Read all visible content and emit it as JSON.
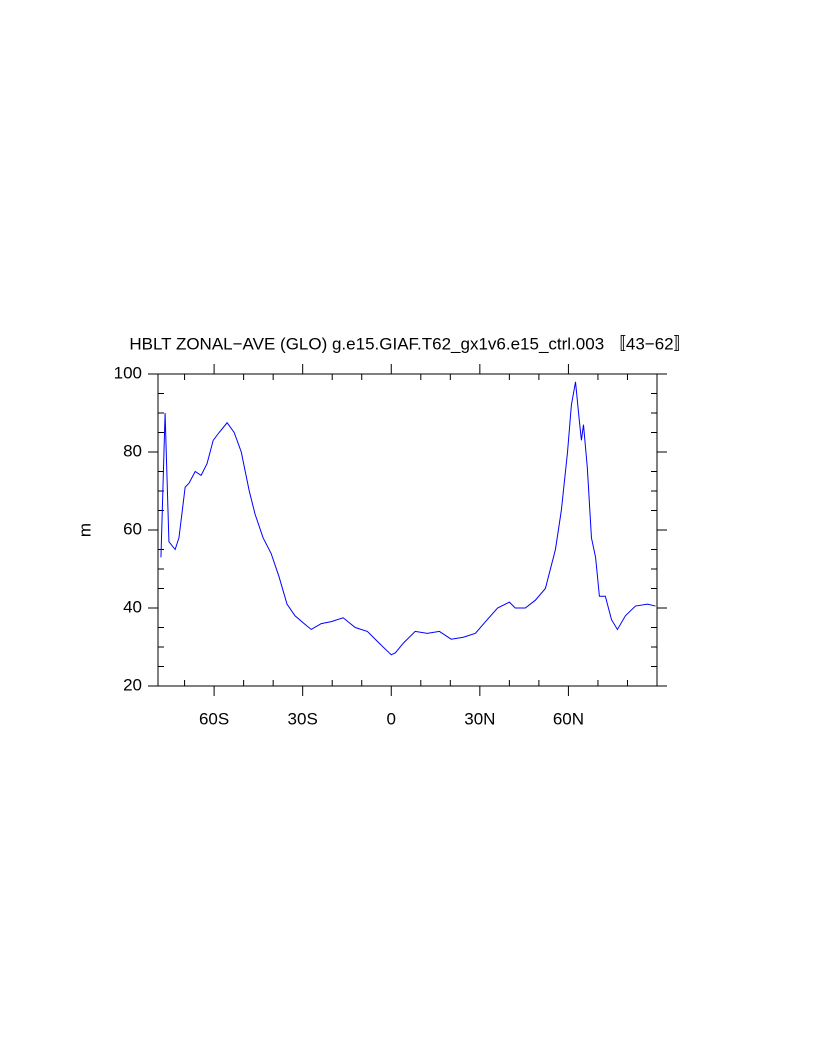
{
  "chart_data": {
    "type": "line",
    "title": "HBLT ZONAL−AVE (GLO) g.e15.GIAF.T62_gx1v6.e15_ctrl.003 〚43−62〛",
    "y_label": "m",
    "xlim": [
      -79,
      90
    ],
    "ylim": [
      20,
      100
    ],
    "xticks": [
      {
        "value": -60,
        "label": "60S"
      },
      {
        "value": -30,
        "label": "30S"
      },
      0,
      {
        "value": 30,
        "label": "30N"
      },
      {
        "value": 60,
        "label": "60N"
      }
    ],
    "xminorticks": [
      -70,
      -50,
      -40,
      -20,
      -10,
      10,
      20,
      40,
      50,
      70,
      80
    ],
    "yticks": [
      20,
      40,
      60,
      80,
      100
    ],
    "yminorticks": [
      25,
      30,
      35,
      45,
      50,
      55,
      65,
      70,
      75,
      85,
      90,
      95
    ],
    "x": [
      -78,
      -76.6,
      -75.3,
      -73.2,
      -71.9,
      -69.8,
      -68.5,
      -66.4,
      -64.4,
      -62.4,
      -60.3,
      -58.3,
      -55.6,
      -53.2,
      -50.8,
      -48.1,
      -46.1,
      -43.4,
      -40.7,
      -38,
      -35.3,
      -32.6,
      -29.5,
      -27.1,
      -23.7,
      -20.3,
      -16.3,
      -12.2,
      -8.1,
      -4.1,
      0,
      1.4,
      4.1,
      8.1,
      12.2,
      16.3,
      20.3,
      24.4,
      28.5,
      31.9,
      36,
      40,
      42,
      45.4,
      48.8,
      52.2,
      55.6,
      57.6,
      59.7,
      61,
      62.4,
      63.7,
      64.4,
      65.1,
      66.4,
      67.8,
      69.2,
      70.5,
      72.5,
      74.6,
      76.6,
      79.3,
      82.7,
      86.8,
      89.5
    ],
    "series": [
      {
        "color": "#0000ff",
        "values": [
          53,
          90,
          57,
          55,
          58,
          71,
          72,
          75,
          74,
          77,
          83,
          85,
          87.5,
          85,
          80,
          70,
          64,
          58,
          54,
          48,
          41,
          38,
          36,
          34.5,
          36,
          36.5,
          37.5,
          35,
          34,
          31,
          28,
          28.5,
          31,
          34,
          33.5,
          34,
          32,
          32.5,
          33.5,
          36.5,
          40,
          41.5,
          40,
          40,
          42,
          45,
          55,
          65,
          80,
          92,
          98,
          88,
          83,
          87,
          76,
          58,
          53,
          43,
          43,
          37,
          34.5,
          38,
          40.5,
          41,
          40.5
        ]
      }
    ]
  }
}
